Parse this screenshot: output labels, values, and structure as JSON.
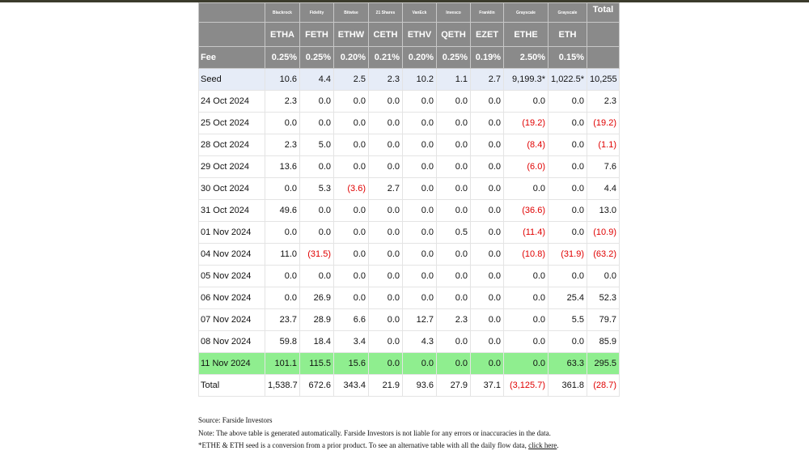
{
  "table": {
    "total_header": "Total",
    "issuers": [
      "Blackrock",
      "Fidelity",
      "Bitwise",
      "21 Shares",
      "VanEck",
      "Invesco",
      "Franklin",
      "Grayscale",
      "Grayscale"
    ],
    "tickers": [
      "ETHA",
      "FETH",
      "ETHW",
      "CETH",
      "ETHV",
      "QETH",
      "EZET",
      "ETHE",
      "ETH"
    ],
    "fee_label": "Fee",
    "fees": [
      "0.25%",
      "0.25%",
      "0.20%",
      "0.21%",
      "0.20%",
      "0.25%",
      "0.19%",
      "2.50%",
      "0.15%"
    ],
    "negative_color": "#e00000",
    "rows": [
      {
        "label": "Seed",
        "background": "#e6ecf7",
        "values": [
          "10.6",
          "4.4",
          "2.5",
          "2.3",
          "10.2",
          "1.1",
          "2.7",
          "9,199.3*",
          "1,022.5*",
          "10,255"
        ]
      },
      {
        "label": "24 Oct 2024",
        "values": [
          "2.3",
          "0.0",
          "0.0",
          "0.0",
          "0.0",
          "0.0",
          "0.0",
          "0.0",
          "0.0",
          "2.3"
        ]
      },
      {
        "label": "25 Oct 2024",
        "values": [
          "0.0",
          "0.0",
          "0.0",
          "0.0",
          "0.0",
          "0.0",
          "0.0",
          "(19.2)",
          "0.0",
          "(19.2)"
        ]
      },
      {
        "label": "28 Oct 2024",
        "values": [
          "2.3",
          "5.0",
          "0.0",
          "0.0",
          "0.0",
          "0.0",
          "0.0",
          "(8.4)",
          "0.0",
          "(1.1)"
        ]
      },
      {
        "label": "29 Oct 2024",
        "values": [
          "13.6",
          "0.0",
          "0.0",
          "0.0",
          "0.0",
          "0.0",
          "0.0",
          "(6.0)",
          "0.0",
          "7.6"
        ]
      },
      {
        "label": "30 Oct 2024",
        "values": [
          "0.0",
          "5.3",
          "(3.6)",
          "2.7",
          "0.0",
          "0.0",
          "0.0",
          "0.0",
          "0.0",
          "4.4"
        ]
      },
      {
        "label": "31 Oct 2024",
        "values": [
          "49.6",
          "0.0",
          "0.0",
          "0.0",
          "0.0",
          "0.0",
          "0.0",
          "(36.6)",
          "0.0",
          "13.0"
        ]
      },
      {
        "label": "01 Nov 2024",
        "values": [
          "0.0",
          "0.0",
          "0.0",
          "0.0",
          "0.0",
          "0.5",
          "0.0",
          "(11.4)",
          "0.0",
          "(10.9)"
        ]
      },
      {
        "label": "04 Nov 2024",
        "values": [
          "11.0",
          "(31.5)",
          "0.0",
          "0.0",
          "0.0",
          "0.0",
          "0.0",
          "(10.8)",
          "(31.9)",
          "(63.2)"
        ]
      },
      {
        "label": "05 Nov 2024",
        "values": [
          "0.0",
          "0.0",
          "0.0",
          "0.0",
          "0.0",
          "0.0",
          "0.0",
          "0.0",
          "0.0",
          "0.0"
        ]
      },
      {
        "label": "06 Nov 2024",
        "values": [
          "0.0",
          "26.9",
          "0.0",
          "0.0",
          "0.0",
          "0.0",
          "0.0",
          "0.0",
          "25.4",
          "52.3"
        ]
      },
      {
        "label": "07 Nov 2024",
        "values": [
          "23.7",
          "28.9",
          "6.6",
          "0.0",
          "12.7",
          "2.3",
          "0.0",
          "0.0",
          "5.5",
          "79.7"
        ]
      },
      {
        "label": "08 Nov 2024",
        "values": [
          "59.8",
          "18.4",
          "3.4",
          "0.0",
          "4.3",
          "0.0",
          "0.0",
          "0.0",
          "0.0",
          "85.9"
        ]
      },
      {
        "label": "11 Nov 2024",
        "background": "#8fee8f",
        "values": [
          "101.1",
          "115.5",
          "15.6",
          "0.0",
          "0.0",
          "0.0",
          "0.0",
          "0.0",
          "63.3",
          "295.5"
        ]
      },
      {
        "label": "Total",
        "values": [
          "1,538.7",
          "672.6",
          "343.4",
          "21.9",
          "93.6",
          "27.9",
          "37.1",
          "(3,125.7)",
          "361.8",
          "(28.7)"
        ]
      }
    ]
  },
  "footer": {
    "source": "Source: Farside Investors",
    "note": "Note: The above table is generated automatically. Farside Investors is not liable for any errors or inaccuracies in the data.",
    "seed_note": "*ETHE & ETH seed is a conversion from a prior product.  To see an alternative table with all the daily flow data, ",
    "link": "click here",
    "link_end": "."
  }
}
